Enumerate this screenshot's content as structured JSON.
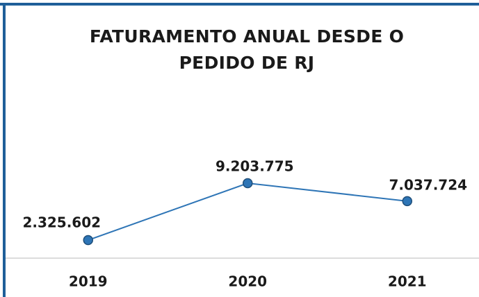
{
  "chart_data": {
    "type": "line",
    "title": "FATURAMENTO ANUAL DESDE O PEDIDO DE RJ",
    "categories": [
      "2019",
      "2020",
      "2021"
    ],
    "series": [
      {
        "color": "#2e75b6",
        "values": [
          2325602,
          9203775,
          7037724
        ],
        "value_labels": [
          "2.325.602",
          "9.203.775",
          "7.037.724"
        ]
      }
    ]
  }
}
